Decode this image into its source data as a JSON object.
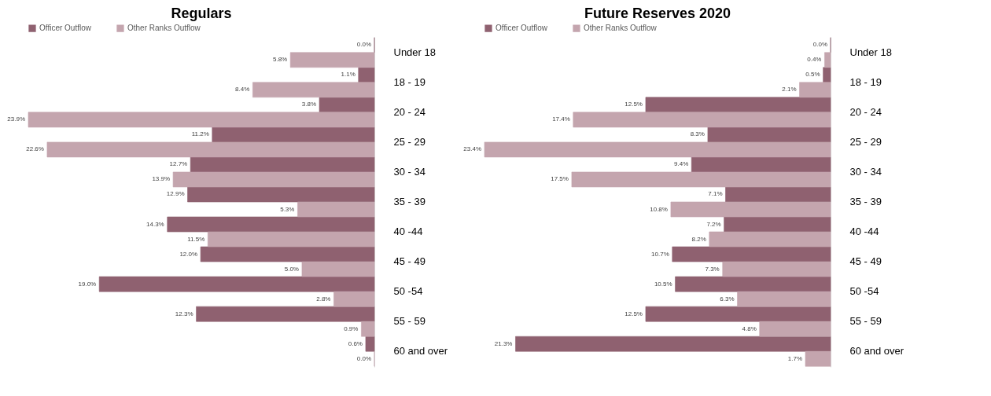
{
  "chart_data": [
    {
      "type": "bar",
      "orientation": "horizontal",
      "title": "Regulars",
      "legend": "top",
      "categories": [
        "Under 18",
        "18 - 19",
        "20 - 24",
        "25 - 29",
        "30 - 34",
        "35 - 39",
        "40 -44",
        "45 - 49",
        "50 -54",
        "55 - 59",
        "60 and over"
      ],
      "series": [
        {
          "name": "Officer Outflow",
          "color": "#8f6170",
          "values": [
            0.0,
            1.1,
            3.8,
            11.2,
            12.7,
            12.9,
            14.3,
            12.0,
            19.0,
            12.3,
            0.6
          ],
          "value_labels": [
            "0.0%",
            "1.1%",
            "3.8%",
            "11.2%",
            "12.7%",
            "12.9%",
            "14.3%",
            "12.0%",
            "19.0%",
            "12.3%",
            "0.6%"
          ]
        },
        {
          "name": "Other Ranks Outflow",
          "color": "#c4a5ae",
          "values": [
            5.8,
            8.4,
            23.9,
            22.6,
            13.9,
            5.3,
            11.5,
            5.0,
            2.8,
            0.9,
            0.0
          ],
          "value_labels": [
            "5.8%",
            "8.4%",
            "23.9%",
            "22.6%",
            "13.9%",
            "5.3%",
            "11.5%",
            "5.0%",
            "2.8%",
            "0.9%",
            "0.0%"
          ]
        }
      ]
    },
    {
      "type": "bar",
      "orientation": "horizontal",
      "title": "Future Reserves 2020",
      "legend": "top",
      "categories": [
        "Under 18",
        "18 - 19",
        "20 - 24",
        "25 - 29",
        "30 - 34",
        "35 - 39",
        "40 -44",
        "45 - 49",
        "50 -54",
        "55 - 59",
        "60 and over"
      ],
      "series": [
        {
          "name": "Officer Outflow",
          "color": "#8f6170",
          "values": [
            0.0,
            0.5,
            12.5,
            8.3,
            9.4,
            7.1,
            7.2,
            10.7,
            10.5,
            12.5,
            21.3
          ],
          "value_labels": [
            "0.0%",
            "0.5%",
            "12.5%",
            "8.3%",
            "9.4%",
            "7.1%",
            "7.2%",
            "10.7%",
            "10.5%",
            "12.5%",
            "21.3%"
          ]
        },
        {
          "name": "Other Ranks Outflow",
          "color": "#c4a5ae",
          "values": [
            0.4,
            2.1,
            17.4,
            23.4,
            17.5,
            10.8,
            8.2,
            7.3,
            6.3,
            4.8,
            1.7
          ],
          "value_labels": [
            "0.4%",
            "2.1%",
            "17.4%",
            "23.4%",
            "17.5%",
            "10.8%",
            "8.2%",
            "7.3%",
            "6.3%",
            "4.8%",
            "1.7%"
          ]
        }
      ]
    }
  ]
}
